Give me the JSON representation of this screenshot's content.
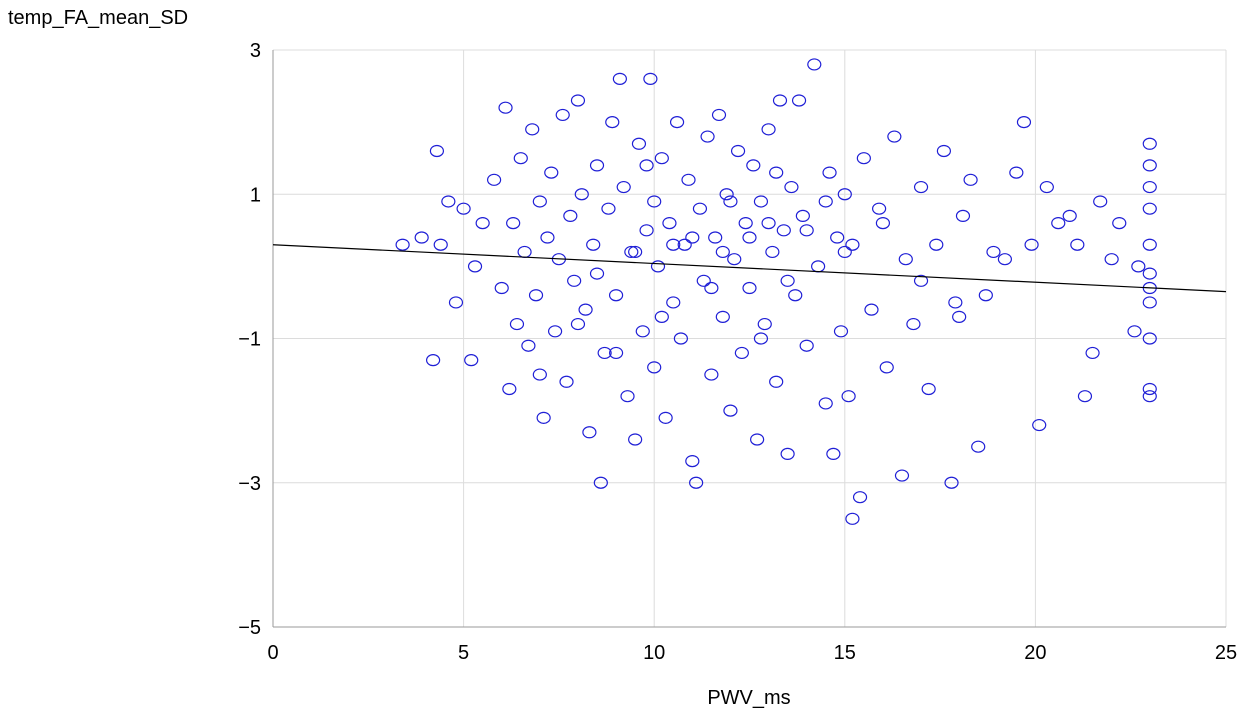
{
  "chart_data": {
    "type": "scatter",
    "title": "",
    "xlabel": "PWV_ms",
    "ylabel": "temp_FA_mean_SD",
    "xlim": [
      0,
      25
    ],
    "ylim": [
      -5,
      3
    ],
    "x_ticks": [
      0,
      5,
      10,
      15,
      20,
      25
    ],
    "x_tick_labels": [
      "0",
      "5",
      "10",
      "15",
      "20",
      "25"
    ],
    "y_ticks": [
      -5,
      -3,
      -1,
      1,
      3
    ],
    "y_tick_labels": [
      "−5",
      "−3",
      "−1",
      "1",
      "3"
    ],
    "grid": true,
    "legend": "none",
    "marker": "open-circle",
    "colors": {
      "points": "#1f1fd6",
      "fit_line": "#000000",
      "grid": "#dcdcdc"
    },
    "fit_line": {
      "x": [
        0,
        25
      ],
      "y": [
        0.3,
        -0.35
      ]
    },
    "series": [
      {
        "points": [
          [
            3.4,
            0.3
          ],
          [
            3.9,
            0.4
          ],
          [
            4.3,
            1.6
          ],
          [
            4.4,
            0.3
          ],
          [
            4.2,
            -1.3
          ],
          [
            4.6,
            0.9
          ],
          [
            4.8,
            -0.5
          ],
          [
            5.0,
            0.8
          ],
          [
            5.2,
            -1.3
          ],
          [
            5.3,
            0.0
          ],
          [
            5.5,
            0.6
          ],
          [
            5.8,
            1.2
          ],
          [
            6.0,
            -0.3
          ],
          [
            6.1,
            2.2
          ],
          [
            6.2,
            -1.7
          ],
          [
            6.3,
            0.6
          ],
          [
            6.4,
            -0.8
          ],
          [
            6.5,
            1.5
          ],
          [
            6.6,
            0.2
          ],
          [
            6.7,
            -1.1
          ],
          [
            6.8,
            1.9
          ],
          [
            6.9,
            -0.4
          ],
          [
            7.0,
            0.9
          ],
          [
            7.1,
            -2.1
          ],
          [
            7.2,
            0.4
          ],
          [
            7.3,
            1.3
          ],
          [
            7.4,
            -0.9
          ],
          [
            7.5,
            0.1
          ],
          [
            7.6,
            2.1
          ],
          [
            7.7,
            -1.6
          ],
          [
            7.8,
            0.7
          ],
          [
            7.9,
            -0.2
          ],
          [
            8.0,
            2.3
          ],
          [
            8.1,
            1.0
          ],
          [
            8.2,
            -0.6
          ],
          [
            8.3,
            -2.3
          ],
          [
            8.4,
            0.3
          ],
          [
            8.5,
            1.4
          ],
          [
            8.6,
            -3.0
          ],
          [
            8.7,
            -1.2
          ],
          [
            8.8,
            0.8
          ],
          [
            8.9,
            2.0
          ],
          [
            9.0,
            -0.4
          ],
          [
            9.1,
            2.6
          ],
          [
            9.2,
            1.1
          ],
          [
            9.3,
            -1.8
          ],
          [
            9.4,
            0.2
          ],
          [
            9.5,
            -2.4
          ],
          [
            9.6,
            1.7
          ],
          [
            9.7,
            -0.9
          ],
          [
            9.8,
            0.5
          ],
          [
            9.9,
            2.6
          ],
          [
            10.0,
            -1.4
          ],
          [
            10.1,
            0.0
          ],
          [
            10.2,
            1.5
          ],
          [
            10.3,
            -2.1
          ],
          [
            10.4,
            0.6
          ],
          [
            10.5,
            -0.5
          ],
          [
            10.6,
            2.0
          ],
          [
            10.7,
            -1.0
          ],
          [
            10.8,
            0.3
          ],
          [
            10.9,
            1.2
          ],
          [
            11.0,
            -2.7
          ],
          [
            11.1,
            -3.0
          ],
          [
            11.2,
            0.8
          ],
          [
            11.3,
            -0.2
          ],
          [
            11.4,
            1.8
          ],
          [
            11.5,
            -1.5
          ],
          [
            11.6,
            0.4
          ],
          [
            11.7,
            2.1
          ],
          [
            11.8,
            -0.7
          ],
          [
            11.9,
            1.0
          ],
          [
            12.0,
            -2.0
          ],
          [
            12.1,
            0.1
          ],
          [
            12.2,
            1.6
          ],
          [
            12.3,
            -1.2
          ],
          [
            12.4,
            0.6
          ],
          [
            12.5,
            -0.3
          ],
          [
            12.6,
            1.4
          ],
          [
            12.7,
            -2.4
          ],
          [
            12.8,
            0.9
          ],
          [
            12.9,
            -0.8
          ],
          [
            13.0,
            1.9
          ],
          [
            13.1,
            0.2
          ],
          [
            13.2,
            -1.6
          ],
          [
            13.3,
            2.3
          ],
          [
            13.4,
            0.5
          ],
          [
            13.5,
            -2.6
          ],
          [
            13.6,
            1.1
          ],
          [
            13.7,
            -0.4
          ],
          [
            13.8,
            2.3
          ],
          [
            13.9,
            0.7
          ],
          [
            14.0,
            -1.1
          ],
          [
            14.2,
            2.8
          ],
          [
            14.3,
            0.0
          ],
          [
            14.5,
            -1.9
          ],
          [
            14.6,
            1.3
          ],
          [
            14.7,
            -2.6
          ],
          [
            14.8,
            0.4
          ],
          [
            14.9,
            -0.9
          ],
          [
            15.0,
            1.0
          ],
          [
            15.1,
            -1.8
          ],
          [
            15.2,
            0.3
          ],
          [
            15.2,
            -3.5
          ],
          [
            15.4,
            -3.2
          ],
          [
            15.5,
            1.5
          ],
          [
            15.7,
            -0.6
          ],
          [
            15.9,
            0.8
          ],
          [
            16.1,
            -1.4
          ],
          [
            16.3,
            1.8
          ],
          [
            16.5,
            -2.9
          ],
          [
            16.6,
            0.1
          ],
          [
            16.8,
            -0.8
          ],
          [
            17.0,
            1.1
          ],
          [
            17.2,
            -1.7
          ],
          [
            17.4,
            0.3
          ],
          [
            17.6,
            1.6
          ],
          [
            17.8,
            -3.0
          ],
          [
            17.9,
            -0.5
          ],
          [
            18.1,
            0.7
          ],
          [
            18.3,
            1.2
          ],
          [
            18.5,
            -2.5
          ],
          [
            18.7,
            -0.4
          ],
          [
            18.9,
            0.2
          ],
          [
            19.2,
            0.1
          ],
          [
            19.5,
            1.3
          ],
          [
            19.7,
            2.0
          ],
          [
            19.9,
            0.3
          ],
          [
            20.1,
            -2.2
          ],
          [
            20.3,
            1.1
          ],
          [
            20.6,
            0.6
          ],
          [
            20.9,
            0.7
          ],
          [
            21.1,
            0.3
          ],
          [
            21.3,
            -1.8
          ],
          [
            21.5,
            -1.2
          ],
          [
            21.7,
            0.9
          ],
          [
            22.0,
            0.1
          ],
          [
            22.2,
            0.6
          ],
          [
            22.6,
            -0.9
          ],
          [
            22.7,
            0.0
          ],
          [
            23.0,
            1.7
          ],
          [
            23.0,
            1.4
          ],
          [
            23.0,
            1.1
          ],
          [
            23.0,
            0.8
          ],
          [
            23.0,
            0.3
          ],
          [
            23.0,
            -0.1
          ],
          [
            23.0,
            -0.3
          ],
          [
            23.0,
            -0.5
          ],
          [
            23.0,
            -1.0
          ],
          [
            23.0,
            -1.7
          ],
          [
            23.0,
            -1.8
          ],
          [
            7.0,
            -1.5
          ],
          [
            8.0,
            -0.8
          ],
          [
            9.0,
            -1.2
          ],
          [
            10.0,
            0.9
          ],
          [
            11.0,
            0.4
          ],
          [
            12.0,
            0.9
          ],
          [
            13.0,
            0.6
          ],
          [
            14.0,
            0.5
          ],
          [
            15.0,
            0.2
          ],
          [
            16.0,
            0.6
          ],
          [
            17.0,
            -0.2
          ],
          [
            18.0,
            -0.7
          ],
          [
            9.5,
            0.2
          ],
          [
            10.5,
            0.3
          ],
          [
            11.5,
            -0.3
          ],
          [
            12.5,
            0.4
          ],
          [
            13.5,
            -0.2
          ],
          [
            8.5,
            -0.1
          ],
          [
            14.5,
            0.9
          ],
          [
            10.2,
            -0.7
          ],
          [
            11.8,
            0.2
          ],
          [
            12.8,
            -1.0
          ],
          [
            9.8,
            1.4
          ],
          [
            13.2,
            1.3
          ]
        ]
      }
    ]
  }
}
